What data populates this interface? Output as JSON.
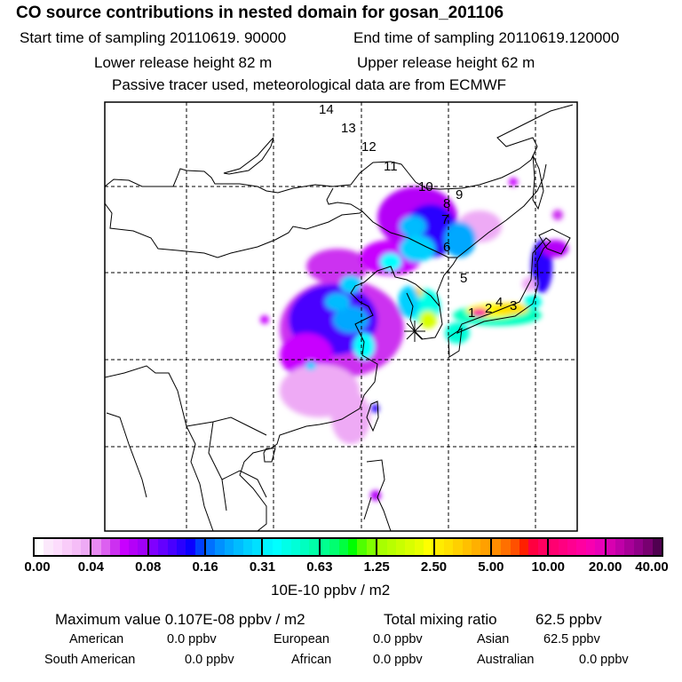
{
  "header": {
    "title": "CO  source contributions in nested domain for gosan_201106",
    "start_label": "Start time of sampling 20110619. 90000",
    "end_label": "End time of sampling 20110619.120000",
    "lower_release": "Lower release height   82 m",
    "upper_release": "Upper release height   62 m",
    "tracer_note": "Passive tracer used, meteorological data are from ECMWF"
  },
  "map": {
    "trajectory_labels": [
      "14",
      "13",
      "12",
      "11",
      "10",
      "9",
      "8",
      "7",
      "6",
      "5",
      "1",
      "2",
      "4",
      "3"
    ],
    "receptor_marker": "asterisk-star"
  },
  "colorbar": {
    "ticks": [
      "0.00",
      "0.04",
      "0.08",
      "0.16",
      "0.31",
      "0.63",
      "1.25",
      "2.50",
      "5.00",
      "10.00",
      "20.00",
      "40.00"
    ],
    "unit": "10E-10 ppbv / m2",
    "segments": [
      [
        "#ffffff",
        "#fbe8fb",
        "#fcdcfc",
        "#f9ccf9",
        "#f5bdf7",
        "#eeaaf5"
      ],
      [
        "#e88af2",
        "#dc60f0",
        "#cc30f0",
        "#c800ff",
        "#b400f8",
        "#a000f8"
      ],
      [
        "#8000ff",
        "#6400ff",
        "#4800ff",
        "#2a00ff",
        "#0a00ff",
        "#0040ff"
      ],
      [
        "#0070ff",
        "#0090ff",
        "#00a8ff",
        "#00bcff",
        "#00d0ff",
        "#00e0ff"
      ],
      [
        "#00f4ff",
        "#00ffff",
        "#00ffe8",
        "#00ffd8",
        "#00ffc0",
        "#00ffa8"
      ],
      [
        "#00ff90",
        "#00ff70",
        "#00ff40",
        "#00ff00",
        "#50ff00",
        "#80ff00"
      ],
      [
        "#a8ff00",
        "#b8ff00",
        "#c8ff00",
        "#d8ff00",
        "#e8ff00",
        "#ffff00"
      ],
      [
        "#ffec00",
        "#ffe000",
        "#ffd000",
        "#ffc000",
        "#ffb000",
        "#ffa000"
      ],
      [
        "#ff8c00",
        "#ff7000",
        "#ff5000",
        "#ff2000",
        "#ff0040",
        "#ff0060"
      ],
      [
        "#ff0070",
        "#ff0080",
        "#ff0090",
        "#ff00a0",
        "#f800b0",
        "#e800b8"
      ],
      [
        "#d800b0",
        "#c000a8",
        "#a80098",
        "#900088",
        "#780070",
        "#500050"
      ]
    ]
  },
  "summary": {
    "max_label": "Maximum value  0.107E-08 ppbv / m2",
    "total_label": "Total mixing ratio",
    "total_value": "62.5 ppbv",
    "regions": [
      {
        "name": "American",
        "value": "0.0 ppbv"
      },
      {
        "name": "European",
        "value": "0.0 ppbv"
      },
      {
        "name": "Asian",
        "value": "62.5 ppbv"
      },
      {
        "name": "South American",
        "value": "0.0 ppbv"
      },
      {
        "name": "African",
        "value": "0.0 ppbv"
      },
      {
        "name": "Australian",
        "value": "0.0 ppbv"
      }
    ]
  }
}
